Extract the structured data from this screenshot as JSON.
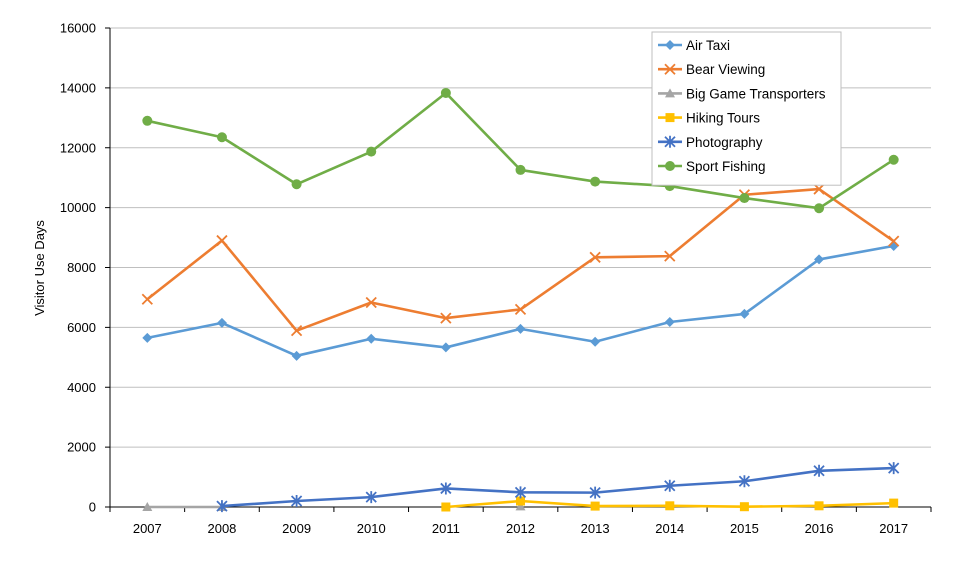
{
  "chart_data": {
    "type": "line",
    "title": "",
    "xlabel": "",
    "ylabel": "Visitor Use Days",
    "ylim": [
      0,
      16000
    ],
    "yticks": [
      0,
      2000,
      4000,
      6000,
      8000,
      10000,
      12000,
      14000,
      16000
    ],
    "categories": [
      "2007",
      "2008",
      "2009",
      "2010",
      "2011",
      "2012",
      "2013",
      "2014",
      "2015",
      "2016",
      "2017"
    ],
    "grid": true,
    "legend_position": "top-right",
    "series": [
      {
        "name": "Air Taxi",
        "color": "#5b9bd5",
        "marker": "diamond",
        "values": [
          5650,
          6150,
          5050,
          5620,
          5330,
          5950,
          5520,
          6180,
          6450,
          8270,
          8720
        ]
      },
      {
        "name": "Bear Viewing",
        "color": "#ed7d31",
        "marker": "x",
        "values": [
          6940,
          8900,
          5890,
          6830,
          6310,
          6600,
          8340,
          8380,
          10430,
          10620,
          8880
        ]
      },
      {
        "name": "Big Game Transporters",
        "color": "#a5a5a5",
        "marker": "triangle",
        "values": [
          0,
          0,
          null,
          null,
          null,
          20,
          null,
          null,
          null,
          null,
          null
        ]
      },
      {
        "name": "Hiking Tours",
        "color": "#ffc000",
        "marker": "square",
        "values": [
          null,
          null,
          null,
          null,
          0,
          200,
          30,
          40,
          10,
          40,
          130
        ]
      },
      {
        "name": "Photography",
        "color": "#4472c4",
        "marker": "star",
        "values": [
          null,
          30,
          200,
          330,
          620,
          490,
          480,
          710,
          860,
          1210,
          1300
        ]
      },
      {
        "name": "Sport Fishing",
        "color": "#70ad47",
        "marker": "circle",
        "values": [
          12900,
          12350,
          10780,
          11870,
          13830,
          11260,
          10870,
          10720,
          10320,
          9980,
          11600
        ]
      }
    ]
  }
}
